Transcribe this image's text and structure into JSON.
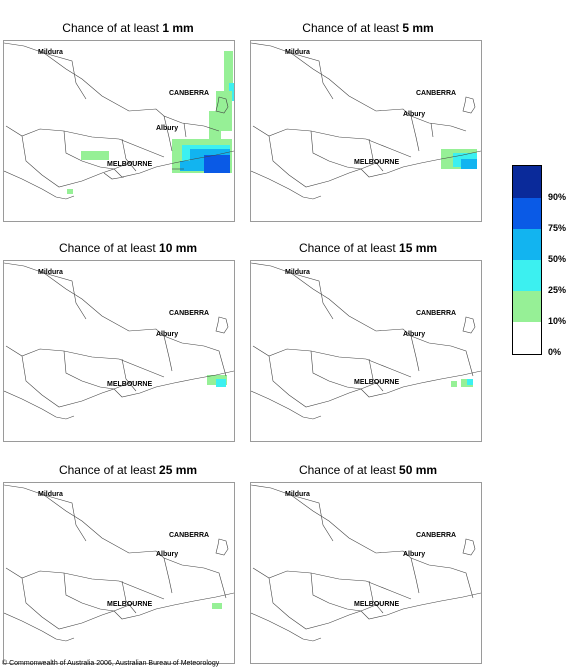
{
  "panels": [
    {
      "prefix": "Chance of at least ",
      "amount": "1 mm"
    },
    {
      "prefix": "Chance of at least ",
      "amount": "5 mm"
    },
    {
      "prefix": "Chance of at least ",
      "amount": "10 mm"
    },
    {
      "prefix": "Chance of at least ",
      "amount": "15 mm"
    },
    {
      "prefix": "Chance of at least ",
      "amount": "25 mm"
    },
    {
      "prefix": "Chance of at least ",
      "amount": "50 mm"
    }
  ],
  "places": {
    "mildura": "Mildura",
    "canberra": "CANBERRA",
    "albury": "Albury",
    "melbourne": "MELBOURNE"
  },
  "legend": {
    "labels": [
      "90%",
      "75%",
      "50%",
      "25%",
      "10%",
      "0%"
    ],
    "colors": [
      "#0a2a9a",
      "#0a5ae6",
      "#12b4f0",
      "#3cf0f0",
      "#96f096",
      "#ffffff"
    ]
  },
  "footer": "© Commonwealth of Australia 2006, Australian Bureau of Meteorology"
}
